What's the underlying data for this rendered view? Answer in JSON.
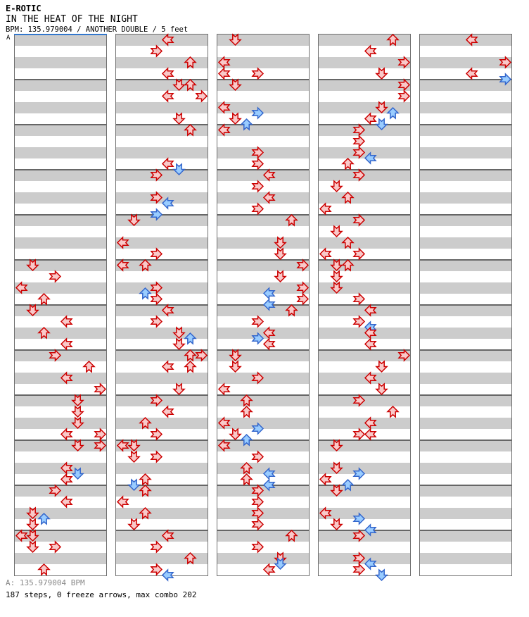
{
  "header": {
    "artist": "E-ROTIC",
    "title": "IN THE HEAT OF THE NIGHT",
    "info": "BPM: 135.979004 / ANOTHER DOUBLE / 5 feet",
    "section_label": "A"
  },
  "footer": {
    "bpm_line": "A: 135.979004 BPM",
    "stats_line": "187 steps, 0 freeze arrows, max combo 202"
  },
  "chart_data": {
    "type": "ddr-step-chart",
    "mode": "double",
    "lanes": [
      "P1-left",
      "P1-down",
      "P1-up",
      "P1-right",
      "P2-left",
      "P2-down",
      "P2-up",
      "P2-right"
    ],
    "lane_directions": [
      "left",
      "down",
      "up",
      "right",
      "left",
      "down",
      "up",
      "right"
    ],
    "beats_per_column": 48,
    "beats_per_measure": 4,
    "columns_count": 5,
    "arrow_format": "[beat, lane, color] ; color r = red 4th note, b = blue 8th note ; direction = lane mod 4 -> left,down,up,right",
    "colors": {
      "red_fill": "#f9c9c9",
      "red_stroke": "#cc0000",
      "blue_fill": "#99ccff",
      "blue_stroke": "#3366cc",
      "stripe_gray": "#cccccc",
      "stripe_white": "#ffffff",
      "measure_line": "#666666",
      "column_border": "#6e6e6e",
      "marker_blue": "#3377cc"
    },
    "columns": [
      {
        "arrows": [
          [
            20,
            1,
            "r"
          ],
          [
            21,
            3,
            "r"
          ],
          [
            22,
            0,
            "r"
          ],
          [
            23,
            2,
            "r"
          ],
          [
            24,
            1,
            "r"
          ],
          [
            25,
            4,
            "r"
          ],
          [
            26,
            2,
            "r"
          ],
          [
            27,
            4,
            "r"
          ],
          [
            28,
            3,
            "r"
          ],
          [
            29,
            6,
            "r"
          ],
          [
            30,
            4,
            "r"
          ],
          [
            31,
            7,
            "r"
          ],
          [
            32,
            5,
            "r"
          ],
          [
            33,
            5,
            "r"
          ],
          [
            34,
            5,
            "r"
          ],
          [
            35,
            4,
            "r"
          ],
          [
            35,
            7,
            "r"
          ],
          [
            36,
            5,
            "r"
          ],
          [
            36,
            7,
            "r"
          ],
          [
            38,
            4,
            "r"
          ],
          [
            38.5,
            5,
            "b"
          ],
          [
            39,
            4,
            "r"
          ],
          [
            40,
            3,
            "r"
          ],
          [
            41,
            4,
            "r"
          ],
          [
            42,
            1,
            "r"
          ],
          [
            42.5,
            2,
            "b"
          ],
          [
            43,
            1,
            "r"
          ],
          [
            44,
            0,
            "r"
          ],
          [
            44,
            1,
            "r"
          ],
          [
            45,
            1,
            "r"
          ],
          [
            45,
            3,
            "r"
          ],
          [
            47,
            2,
            "r"
          ]
        ]
      },
      {
        "arrows": [
          [
            0,
            4,
            "r"
          ],
          [
            1,
            3,
            "r"
          ],
          [
            2,
            6,
            "r"
          ],
          [
            3,
            4,
            "r"
          ],
          [
            4,
            5,
            "r"
          ],
          [
            4,
            6,
            "r"
          ],
          [
            5,
            4,
            "r"
          ],
          [
            5,
            7,
            "r"
          ],
          [
            7,
            5,
            "r"
          ],
          [
            8,
            6,
            "r"
          ],
          [
            11,
            4,
            "r"
          ],
          [
            11.5,
            5,
            "b"
          ],
          [
            12,
            3,
            "r"
          ],
          [
            14,
            3,
            "r"
          ],
          [
            14.5,
            4,
            "b"
          ],
          [
            15.5,
            3,
            "b"
          ],
          [
            16,
            1,
            "r"
          ],
          [
            18,
            0,
            "r"
          ],
          [
            19,
            3,
            "r"
          ],
          [
            20,
            0,
            "r"
          ],
          [
            20,
            2,
            "r"
          ],
          [
            22,
            3,
            "r"
          ],
          [
            22.5,
            2,
            "b"
          ],
          [
            23,
            3,
            "r"
          ],
          [
            24,
            4,
            "r"
          ],
          [
            25,
            3,
            "r"
          ],
          [
            26,
            5,
            "r"
          ],
          [
            26.5,
            6,
            "b"
          ],
          [
            27,
            5,
            "r"
          ],
          [
            28,
            6,
            "r"
          ],
          [
            28,
            7,
            "r"
          ],
          [
            29,
            4,
            "r"
          ],
          [
            29,
            6,
            "r"
          ],
          [
            31,
            5,
            "r"
          ],
          [
            32,
            3,
            "r"
          ],
          [
            33,
            4,
            "r"
          ],
          [
            34,
            2,
            "r"
          ],
          [
            35,
            3,
            "r"
          ],
          [
            36,
            0,
            "r"
          ],
          [
            36,
            1,
            "r"
          ],
          [
            37,
            1,
            "r"
          ],
          [
            37,
            3,
            "r"
          ],
          [
            39,
            2,
            "r"
          ],
          [
            39.5,
            1,
            "b"
          ],
          [
            40,
            2,
            "r"
          ],
          [
            41,
            0,
            "r"
          ],
          [
            42,
            2,
            "r"
          ],
          [
            43,
            1,
            "r"
          ],
          [
            44,
            4,
            "r"
          ],
          [
            45,
            3,
            "r"
          ],
          [
            46,
            6,
            "r"
          ],
          [
            47,
            3,
            "r"
          ],
          [
            47.5,
            4,
            "b"
          ]
        ]
      },
      {
        "arrows": [
          [
            0,
            1,
            "r"
          ],
          [
            2,
            0,
            "r"
          ],
          [
            3,
            0,
            "r"
          ],
          [
            3,
            3,
            "r"
          ],
          [
            4,
            1,
            "r"
          ],
          [
            6,
            0,
            "r"
          ],
          [
            6.5,
            3,
            "b"
          ],
          [
            7,
            1,
            "r"
          ],
          [
            7.5,
            2,
            "b"
          ],
          [
            8,
            0,
            "r"
          ],
          [
            10,
            3,
            "r"
          ],
          [
            11,
            3,
            "r"
          ],
          [
            12,
            4,
            "r"
          ],
          [
            13,
            3,
            "r"
          ],
          [
            14,
            4,
            "r"
          ],
          [
            15,
            3,
            "r"
          ],
          [
            16,
            6,
            "r"
          ],
          [
            18,
            5,
            "r"
          ],
          [
            19,
            5,
            "r"
          ],
          [
            20,
            7,
            "r"
          ],
          [
            21,
            5,
            "r"
          ],
          [
            22,
            7,
            "r"
          ],
          [
            22.5,
            4,
            "b"
          ],
          [
            23,
            7,
            "r"
          ],
          [
            23.5,
            4,
            "b"
          ],
          [
            24,
            6,
            "r"
          ],
          [
            25,
            3,
            "r"
          ],
          [
            26,
            4,
            "r"
          ],
          [
            26.5,
            3,
            "b"
          ],
          [
            27,
            4,
            "r"
          ],
          [
            28,
            1,
            "r"
          ],
          [
            29,
            1,
            "r"
          ],
          [
            30,
            3,
            "r"
          ],
          [
            31,
            0,
            "r"
          ],
          [
            32,
            2,
            "r"
          ],
          [
            33,
            2,
            "r"
          ],
          [
            34,
            0,
            "r"
          ],
          [
            34.5,
            3,
            "b"
          ],
          [
            35,
            1,
            "r"
          ],
          [
            35.5,
            2,
            "b"
          ],
          [
            36,
            0,
            "r"
          ],
          [
            37,
            3,
            "r"
          ],
          [
            38,
            2,
            "r"
          ],
          [
            38.5,
            4,
            "b"
          ],
          [
            39,
            2,
            "r"
          ],
          [
            39.5,
            4,
            "b"
          ],
          [
            40,
            3,
            "r"
          ],
          [
            41,
            3,
            "r"
          ],
          [
            42,
            3,
            "r"
          ],
          [
            43,
            3,
            "r"
          ],
          [
            44,
            6,
            "r"
          ],
          [
            45,
            3,
            "r"
          ],
          [
            46,
            5,
            "r"
          ],
          [
            46.5,
            5,
            "b"
          ],
          [
            47,
            4,
            "r"
          ]
        ]
      },
      {
        "arrows": [
          [
            0,
            6,
            "r"
          ],
          [
            1,
            4,
            "r"
          ],
          [
            2,
            7,
            "r"
          ],
          [
            3,
            5,
            "r"
          ],
          [
            4,
            7,
            "r"
          ],
          [
            5,
            7,
            "r"
          ],
          [
            6,
            5,
            "r"
          ],
          [
            6.5,
            6,
            "b"
          ],
          [
            7,
            4,
            "r"
          ],
          [
            7.5,
            5,
            "b"
          ],
          [
            8,
            3,
            "r"
          ],
          [
            9,
            3,
            "r"
          ],
          [
            10,
            3,
            "r"
          ],
          [
            10.5,
            4,
            "b"
          ],
          [
            11,
            2,
            "r"
          ],
          [
            12,
            3,
            "r"
          ],
          [
            13,
            1,
            "r"
          ],
          [
            14,
            2,
            "r"
          ],
          [
            15,
            0,
            "r"
          ],
          [
            16,
            3,
            "r"
          ],
          [
            17,
            1,
            "r"
          ],
          [
            18,
            2,
            "r"
          ],
          [
            19,
            0,
            "r"
          ],
          [
            19,
            3,
            "r"
          ],
          [
            20,
            1,
            "r"
          ],
          [
            20,
            2,
            "r"
          ],
          [
            21,
            1,
            "r"
          ],
          [
            22,
            1,
            "r"
          ],
          [
            23,
            3,
            "r"
          ],
          [
            24,
            4,
            "r"
          ],
          [
            25,
            3,
            "r"
          ],
          [
            25.5,
            4,
            "b"
          ],
          [
            26,
            4,
            "r"
          ],
          [
            27,
            4,
            "r"
          ],
          [
            28,
            7,
            "r"
          ],
          [
            29,
            5,
            "r"
          ],
          [
            30,
            4,
            "r"
          ],
          [
            31,
            5,
            "r"
          ],
          [
            32,
            3,
            "r"
          ],
          [
            33,
            6,
            "r"
          ],
          [
            34,
            4,
            "r"
          ],
          [
            35,
            3,
            "r"
          ],
          [
            35,
            4,
            "r"
          ],
          [
            36,
            1,
            "r"
          ],
          [
            38,
            1,
            "r"
          ],
          [
            38.5,
            3,
            "b"
          ],
          [
            39,
            0,
            "r"
          ],
          [
            39.5,
            2,
            "b"
          ],
          [
            40,
            1,
            "r"
          ],
          [
            42,
            0,
            "r"
          ],
          [
            42.5,
            3,
            "b"
          ],
          [
            43,
            1,
            "r"
          ],
          [
            43.5,
            4,
            "b"
          ],
          [
            44,
            3,
            "r"
          ],
          [
            46,
            3,
            "r"
          ],
          [
            46.5,
            4,
            "b"
          ],
          [
            47,
            3,
            "r"
          ],
          [
            47.5,
            5,
            "b"
          ]
        ]
      },
      {
        "arrows": [
          [
            0,
            4,
            "r"
          ],
          [
            2,
            7,
            "r"
          ],
          [
            3,
            4,
            "r"
          ],
          [
            3.5,
            7,
            "b"
          ]
        ]
      }
    ]
  }
}
